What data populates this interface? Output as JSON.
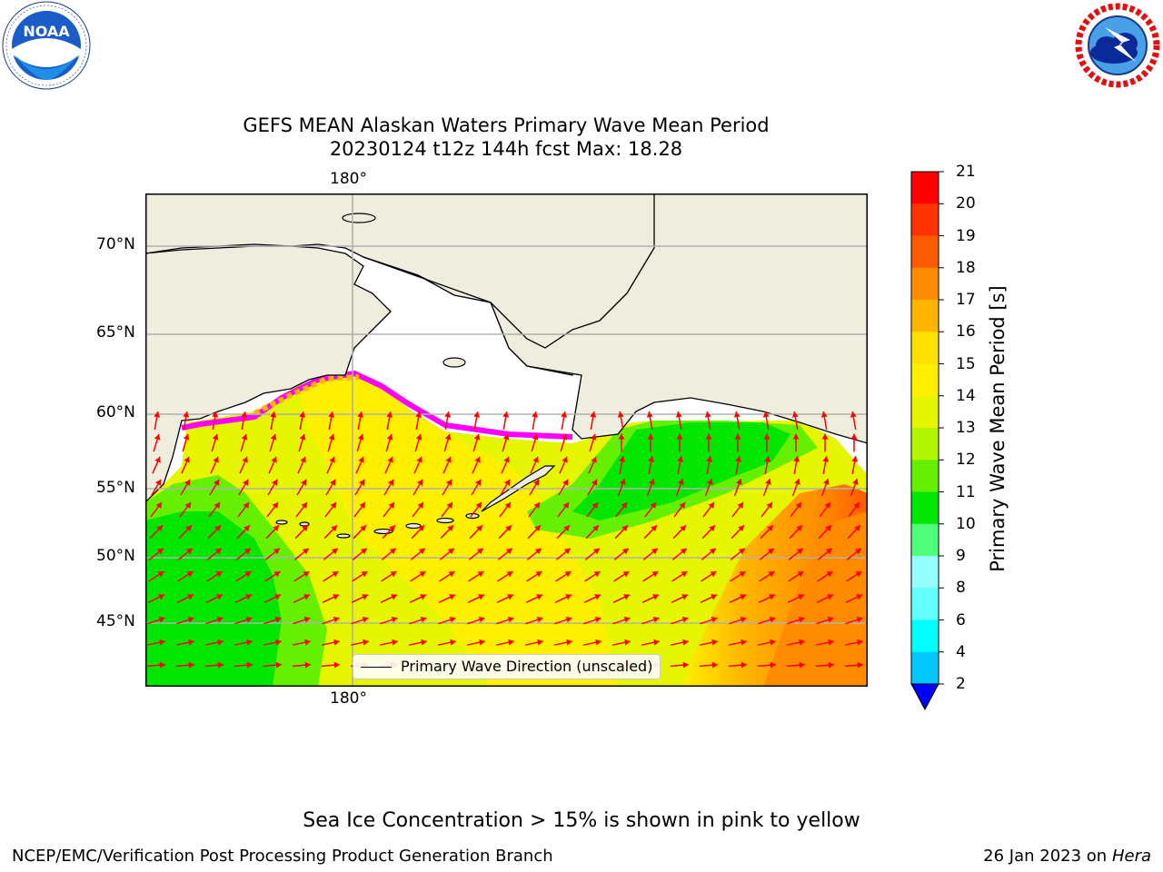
{
  "title": {
    "line1": "GEFS MEAN Alaskan Waters Primary Wave Mean Period",
    "line2": "20230124 t12z 144h fcst   Max: 18.28"
  },
  "logos": {
    "left": {
      "icon": "noaa-logo",
      "text": "NOAA",
      "ring_text": "NATIONAL OCEANIC AND ATMOSPHERIC ADMINISTRATION · U.S. DEPARTMENT OF COMMERCE"
    },
    "right": {
      "icon": "nws-logo",
      "ring_text": "NATIONAL WEATHER SERVICE"
    }
  },
  "map": {
    "lon_labels": {
      "top": "180°",
      "bottom": "180°"
    },
    "lat_labels": [
      "70°N",
      "65°N",
      "60°N",
      "55°N",
      "50°N",
      "45°N"
    ],
    "legend_label": "Primary Wave Direction (unscaled)",
    "colors": {
      "land": "#efedde",
      "ocean_nodata": "#ffffff",
      "arrows": "#ff0000",
      "gridlines": "#b0b0b0",
      "coast": "#000000",
      "ice_low": "#ff00ff",
      "ice_high": "#ffff00"
    }
  },
  "colorbar": {
    "label": "Primary Wave Mean Period [s]",
    "ticks": [
      "2",
      "4",
      "6",
      "8",
      "9",
      "10",
      "11",
      "12",
      "13",
      "14",
      "15",
      "16",
      "17",
      "18",
      "19",
      "20",
      "21"
    ],
    "colors": [
      "#0064ff",
      "#00c8ff",
      "#00ffff",
      "#64ffff",
      "#96ffff",
      "#50ff7a",
      "#00e600",
      "#64f000",
      "#b4f500",
      "#e6f500",
      "#fff000",
      "#ffe100",
      "#ffb400",
      "#ff8c00",
      "#ff5a00",
      "#ff3200",
      "#ff0000"
    ],
    "extend_color": "#0000ff"
  },
  "note": "Sea Ice Concentration > 15% is shown in pink to yellow",
  "footer": {
    "left": "NCEP/EMC/Verification Post Processing Product Generation Branch",
    "right_date": "26 Jan 2023 on",
    "right_host": "Hera"
  }
}
